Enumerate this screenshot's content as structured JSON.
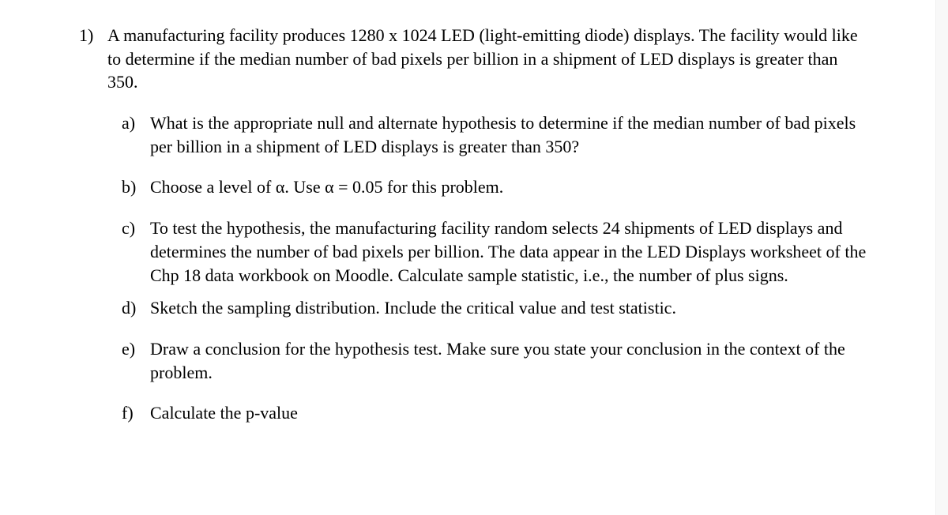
{
  "question": {
    "number": "1)",
    "intro": "A manufacturing facility produces 1280 x 1024 LED (light-emitting diode) displays. The facility would like to determine if the median number of bad pixels per billion in a shipment of LED displays is greater than 350.",
    "parts": {
      "a": {
        "label": "a)",
        "text": "What is the appropriate null and alternate hypothesis to determine if the median number of bad pixels per billion in a shipment of LED displays is greater than 350?"
      },
      "b": {
        "label": "b)",
        "text": "Choose a level of α.  Use α = 0.05 for this problem."
      },
      "c": {
        "label": "c)",
        "text": "To test the hypothesis, the manufacturing facility random selects 24 shipments of LED displays and determines the number of bad pixels per billion.   The data appear in the LED Displays worksheet of the Chp 18 data workbook on Moodle. Calculate sample statistic, i.e., the number of plus signs."
      },
      "d": {
        "label": "d)",
        "text": "Sketch the sampling distribution.  Include the critical value and test statistic."
      },
      "e": {
        "label": "e)",
        "text": "Draw a conclusion for the hypothesis test.  Make sure you state your conclusion in the context of the problem."
      },
      "f": {
        "label": "f)",
        "text": "Calculate the p-value"
      }
    }
  }
}
